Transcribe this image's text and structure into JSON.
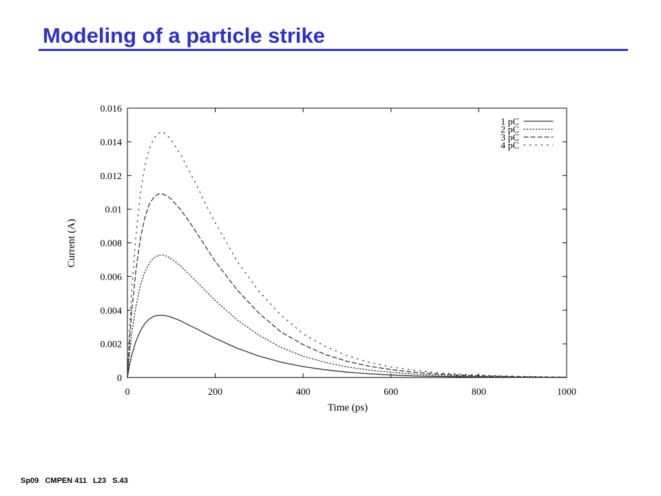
{
  "slide": {
    "title": "Modeling of a particle strike",
    "footer": "Sp09   CMPEN 411   L23   S.43"
  },
  "colors": {
    "title": "#2f2fd0",
    "curves": "#333333"
  },
  "chart_data": {
    "type": "line",
    "title": "",
    "xlabel": "Time (ps)",
    "ylabel": "Current (A)",
    "xlim": [
      0,
      1000
    ],
    "ylim": [
      0,
      0.016
    ],
    "x_ticks": [
      "0",
      "200",
      "400",
      "600",
      "800",
      "1000"
    ],
    "y_ticks": [
      "0",
      "0.002",
      "0.004",
      "0.006",
      "0.008",
      "0.01",
      "0.012",
      "0.014",
      "0.016"
    ],
    "grid": false,
    "legend_position": "top-right",
    "x": [
      0,
      5,
      10,
      20,
      30,
      40,
      50,
      60,
      70,
      80,
      90,
      100,
      120,
      140,
      160,
      180,
      200,
      250,
      300,
      350,
      400,
      450,
      500,
      550,
      600,
      650,
      700,
      750,
      800,
      850,
      900,
      950,
      1000
    ],
    "series": [
      {
        "name": "1 pC",
        "style": "solid",
        "values": [
          0,
          0.00075,
          0.00135,
          0.0022,
          0.0028,
          0.00322,
          0.00348,
          0.00363,
          0.0037,
          0.0037,
          0.00366,
          0.00358,
          0.00338,
          0.00312,
          0.00286,
          0.00259,
          0.00233,
          0.00174,
          0.00127,
          0.00091,
          0.00065,
          0.00046,
          0.00032,
          0.00022,
          0.00015,
          0.0001,
          7e-05,
          5e-05,
          3e-05,
          2e-05,
          1e-05,
          1e-05,
          0
        ]
      },
      {
        "name": "2 pC",
        "style": "dotted",
        "values": [
          0,
          0.00147,
          0.00265,
          0.0043,
          0.0055,
          0.0063,
          0.0068,
          0.0071,
          0.00725,
          0.00728,
          0.0072,
          0.00705,
          0.00665,
          0.00615,
          0.00562,
          0.0051,
          0.00458,
          0.00342,
          0.0025,
          0.00179,
          0.00127,
          0.0009,
          0.00063,
          0.00044,
          0.00031,
          0.00021,
          0.00015,
          0.0001,
          7e-05,
          5e-05,
          3e-05,
          2e-05,
          1e-05
        ]
      },
      {
        "name": "3 pC",
        "style": "dashed",
        "values": [
          0,
          0.0022,
          0.004,
          0.0065,
          0.0083,
          0.0095,
          0.0103,
          0.0107,
          0.0109,
          0.0109,
          0.0108,
          0.0106,
          0.01,
          0.0093,
          0.0085,
          0.0077,
          0.0069,
          0.0052,
          0.0038,
          0.0027,
          0.00195,
          0.00137,
          0.00096,
          0.00067,
          0.00047,
          0.00032,
          0.00022,
          0.00015,
          0.0001,
          7e-05,
          5e-05,
          3e-05,
          2e-05
        ]
      },
      {
        "name": "4 pC",
        "style": "sparse-dotted",
        "values": [
          0,
          0.0029,
          0.0053,
          0.0086,
          0.011,
          0.0126,
          0.0136,
          0.0142,
          0.0145,
          0.0146,
          0.0144,
          0.0141,
          0.0133,
          0.0123,
          0.0113,
          0.0102,
          0.0092,
          0.0069,
          0.0051,
          0.0037,
          0.0026,
          0.00185,
          0.0013,
          0.0009,
          0.00063,
          0.00044,
          0.0003,
          0.00021,
          0.00014,
          0.0001,
          7e-05,
          5e-05,
          3e-05
        ]
      }
    ]
  }
}
